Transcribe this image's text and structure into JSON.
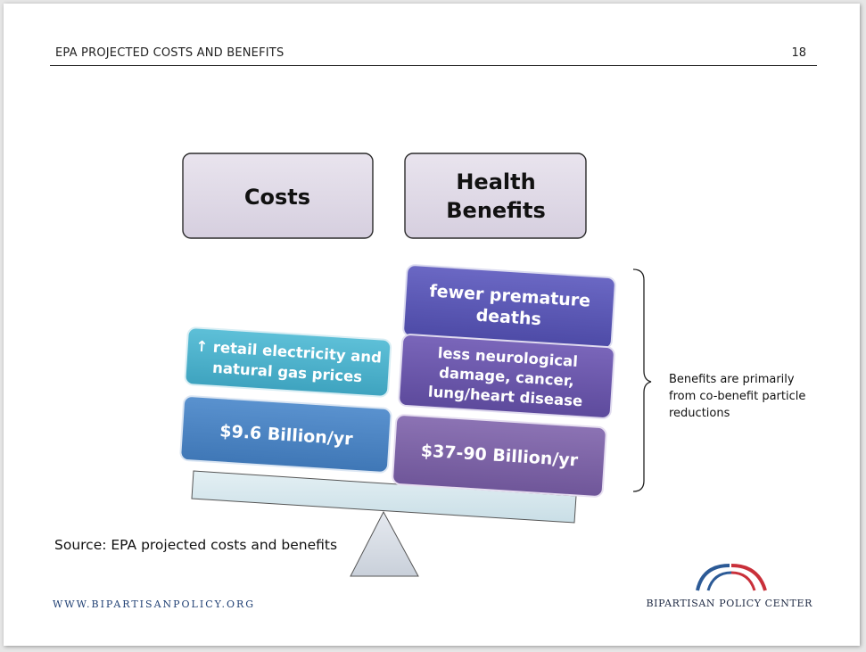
{
  "header": {
    "title": "EPA PROJECTED COSTS AND BENEFITS",
    "page_number": "18"
  },
  "diagram": {
    "costs_label": "Costs",
    "benefits_label_line1": "Health",
    "benefits_label_line2": "Benefits",
    "cost_items": [
      {
        "line1": "↑ retail electricity and",
        "line2": "natural gas prices",
        "color": "#4aafc9"
      },
      {
        "line1": "$9.6 Billion/yr",
        "color": "#4a82c1"
      }
    ],
    "benefit_items": [
      {
        "line1": "fewer premature",
        "line2": "deaths",
        "color": "#5b58b6"
      },
      {
        "line1": "less neurological",
        "line2": "damage, cancer,",
        "line3": "lung/heart disease",
        "color": "#6a55ac"
      },
      {
        "line1": "$37-90 Billion/yr",
        "color": "#7d62a6"
      }
    ],
    "annotation": "Benefits are primarily from co-benefit particle reductions"
  },
  "source": "Source: EPA projected costs and benefits",
  "footer": {
    "url": "WWW.BIPARTISANPOLICY.ORG",
    "brand": "BIPARTISAN POLICY CENTER",
    "logo_colors": [
      "#2c5a96",
      "#c9303a"
    ]
  }
}
